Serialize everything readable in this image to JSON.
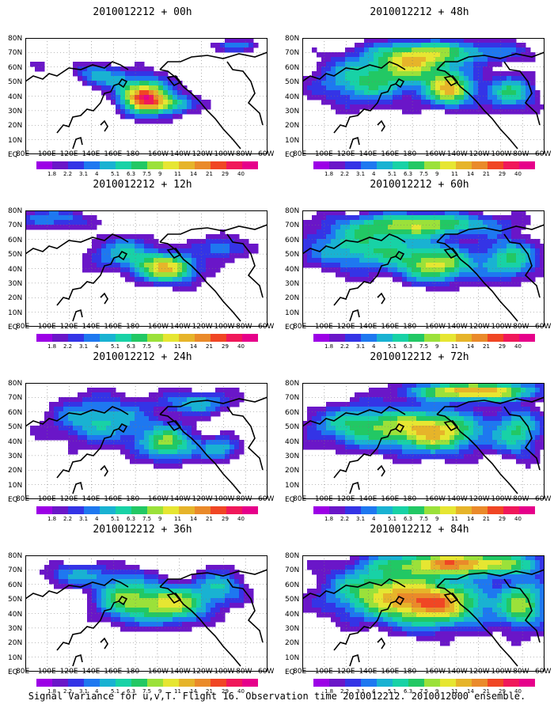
{
  "panels": [
    {
      "title": "2010012212 + 00h"
    },
    {
      "title": "2010012212 + 48h"
    },
    {
      "title": "2010012212 + 12h"
    },
    {
      "title": "2010012212 + 60h"
    },
    {
      "title": "2010012212 + 24h"
    },
    {
      "title": "2010012212 + 72h"
    },
    {
      "title": "2010012212 + 36h"
    },
    {
      "title": "2010012212 + 84h"
    }
  ],
  "x_ticks": [
    "80E",
    "100E",
    "120E",
    "140E",
    "160E",
    "180",
    "160W",
    "140W",
    "120W",
    "100W",
    "80W",
    "60W"
  ],
  "y_ticks": [
    "80N",
    "70N",
    "60N",
    "50N",
    "40N",
    "30N",
    "20N",
    "10N",
    "EQ"
  ],
  "colorbar": {
    "labels": [
      "1.8",
      "2.2",
      "3.1",
      "4",
      "5.1",
      "6.3",
      "7.5",
      "9",
      "11",
      "14",
      "21",
      "29",
      "40"
    ],
    "colors": [
      "#9c00e6",
      "#6a16c8",
      "#3434e6",
      "#1e78f0",
      "#19b2d2",
      "#18d2a6",
      "#22c864",
      "#9be13a",
      "#e6e632",
      "#e6b42a",
      "#ea8a2a",
      "#f04624",
      "#f0185a",
      "#e6008a"
    ]
  },
  "caption": "Signal Variance for u,v,T. Flight 16. Observation time 2010012212. 2010012000 ensemble."
}
